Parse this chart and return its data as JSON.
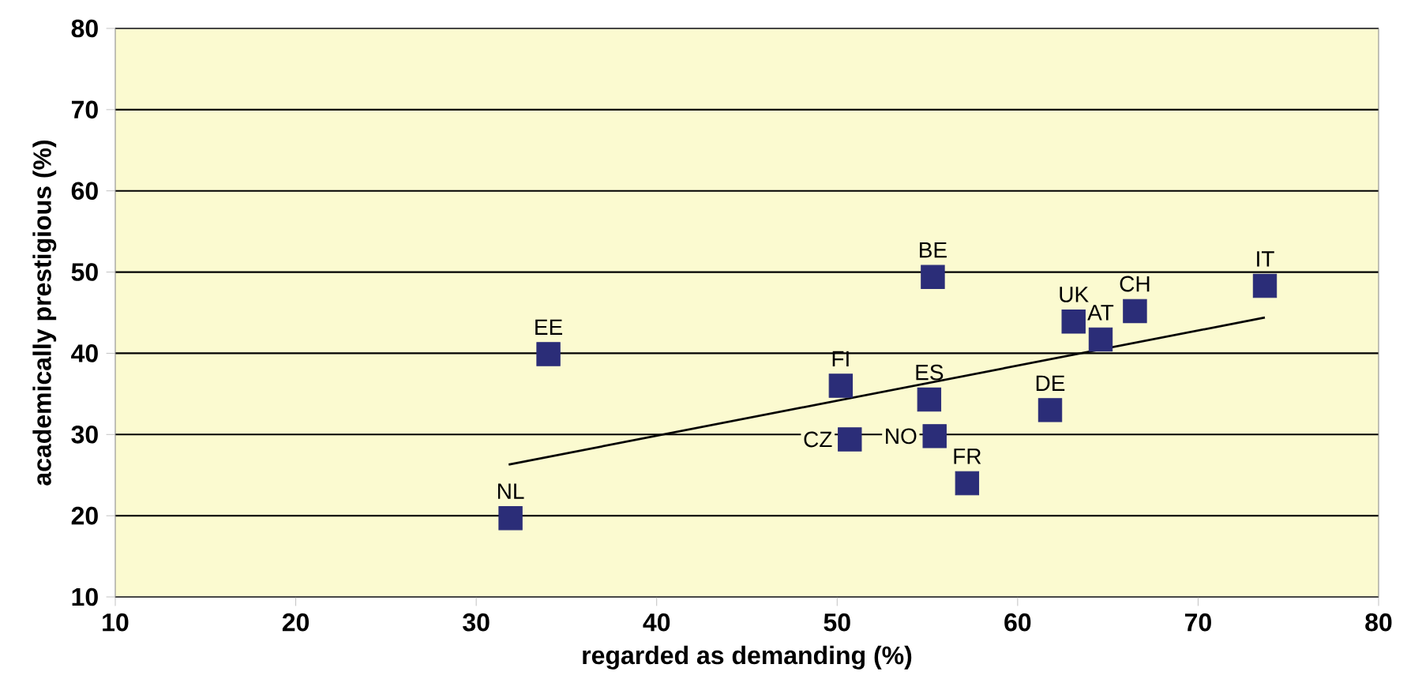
{
  "chart_data": {
    "type": "scatter",
    "xlabel": "regarded as demanding (%)",
    "ylabel": "academically prestigious (%)",
    "xlim": [
      10,
      80
    ],
    "ylim": [
      10,
      80
    ],
    "xticks": [
      10,
      20,
      30,
      40,
      50,
      60,
      70,
      80
    ],
    "yticks": [
      10,
      20,
      30,
      40,
      50,
      60,
      70,
      80
    ],
    "grid": "y",
    "marker": "square",
    "series": [
      {
        "color": "#2b2d78",
        "x": [
          31.9,
          34.0,
          50.2,
          50.7,
          55.3,
          55.1,
          55.4,
          57.2,
          61.8,
          63.1,
          64.6,
          66.5,
          73.7
        ],
        "values": [
          19.7,
          39.9,
          36.0,
          29.4,
          49.4,
          34.3,
          29.8,
          24.0,
          33.0,
          43.9,
          41.7,
          45.2,
          48.3
        ]
      },
      {
        "type": "line",
        "color": "#000000",
        "marker": "none",
        "x": [
          31.8,
          73.7
        ],
        "values": [
          26.3,
          44.4
        ]
      }
    ],
    "annotations": [
      {
        "text": "NL",
        "x": 31.9,
        "y": 19.7
      },
      {
        "text": "EE",
        "x": 34.0,
        "y": 39.9
      },
      {
        "text": "FI",
        "x": 50.2,
        "y": 36.0
      },
      {
        "text": "CZ",
        "x": 50.7,
        "y": 29.4
      },
      {
        "text": "BE",
        "x": 55.3,
        "y": 49.4
      },
      {
        "text": "ES",
        "x": 55.1,
        "y": 34.3
      },
      {
        "text": "NO",
        "x": 55.4,
        "y": 29.8
      },
      {
        "text": "FR",
        "x": 57.2,
        "y": 24.0
      },
      {
        "text": "DE",
        "x": 61.8,
        "y": 33.0
      },
      {
        "text": "UK",
        "x": 63.1,
        "y": 43.9
      },
      {
        "text": "AT",
        "x": 64.6,
        "y": 41.7
      },
      {
        "text": "CH",
        "x": 66.5,
        "y": 45.2
      },
      {
        "text": "IT",
        "x": 73.7,
        "y": 48.3
      }
    ]
  }
}
